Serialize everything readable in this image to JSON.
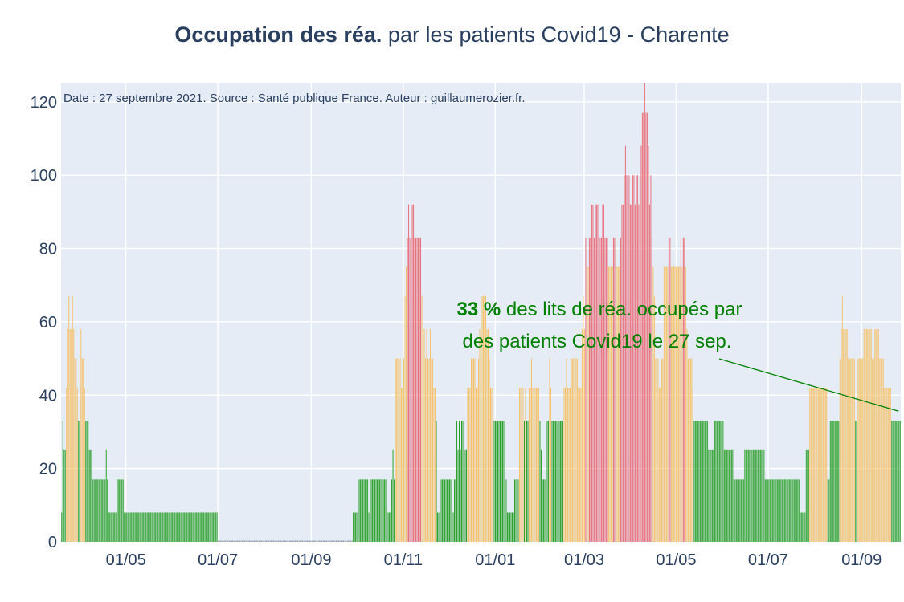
{
  "title": {
    "bold": "Occupation des réa.",
    "rest": " par les patients Covid19 - Charente"
  },
  "note": "Date : 27 septembre 2021. Source : Santé publique France. Auteur : guillaumerozier.fr.",
  "annotation": {
    "value": "33",
    "value_suffix": " %",
    "line1_rest": " des lits de réa. occupés par",
    "line2": "des patients Covid19 le 27 sep."
  },
  "colors": {
    "green": "#2ca02c",
    "orange": "#f5c26b",
    "red": "#e8707b",
    "plot_bg": "#e5ecf6",
    "grid": "#ffffff",
    "axis_text": "#2a3f5f",
    "annotation": "#008000"
  },
  "chart_data": {
    "type": "bar",
    "ylim": [
      0,
      125
    ],
    "yticks": [
      "0",
      "20",
      "40",
      "60",
      "80",
      "100",
      "120"
    ],
    "xticks": [
      "01/05",
      "01/07",
      "01/09",
      "01/11",
      "01/01",
      "01/03",
      "01/05",
      "01/07",
      "01/09"
    ],
    "grid": true,
    "x_start": "2020-03-19",
    "x_end": "2021-09-27",
    "color_thresholds": {
      "green_below": 40,
      "orange_below": 80
    },
    "series": [
      {
        "values": [
          8,
          33,
          25,
          25,
          42,
          58,
          67,
          58,
          58,
          67,
          58,
          50,
          50,
          42,
          33,
          33,
          58,
          50,
          50,
          42,
          33,
          33,
          33,
          25,
          25,
          25,
          17,
          17,
          17,
          17,
          17,
          17,
          17,
          17,
          17,
          17,
          17,
          25,
          17,
          8,
          8,
          8,
          8,
          8,
          8,
          8,
          17,
          17,
          17,
          17,
          17,
          17,
          8,
          8,
          8,
          8,
          8,
          8,
          8,
          8,
          8,
          8,
          8,
          8,
          8,
          8,
          8,
          8,
          8,
          8,
          8,
          8,
          8,
          8,
          8,
          8,
          8,
          8,
          8,
          8,
          8,
          8,
          8,
          8,
          8,
          8,
          8,
          8,
          8,
          8,
          8,
          8,
          8,
          8,
          8,
          8,
          8,
          8,
          8,
          8,
          8,
          8,
          8,
          8,
          8,
          8,
          8,
          8,
          8,
          8,
          8,
          8,
          8,
          8,
          8,
          8,
          8,
          8,
          8,
          8,
          8,
          8,
          8,
          8,
          8,
          8,
          8,
          8,
          8,
          8,
          0,
          0,
          0,
          0,
          0,
          0,
          0,
          0,
          0,
          0,
          0,
          0,
          0,
          0,
          0,
          0,
          0,
          0,
          0,
          0,
          0,
          0,
          0,
          0,
          0,
          0,
          0,
          0,
          0,
          0,
          0,
          0,
          0,
          0,
          0,
          0,
          0,
          0,
          0,
          0,
          0,
          0,
          0,
          0,
          0,
          0,
          0,
          0,
          0,
          0,
          0,
          0,
          0,
          0,
          0,
          0,
          0,
          0,
          0,
          0,
          0,
          0,
          0,
          0,
          0,
          0,
          0,
          0,
          0,
          0,
          0,
          0,
          0,
          0,
          0,
          0,
          0,
          0,
          0,
          0,
          0,
          0,
          0,
          0,
          0,
          0,
          0,
          0,
          0,
          0,
          0,
          0,
          0,
          0,
          0,
          0,
          0,
          0,
          0,
          0,
          0,
          0,
          0,
          0,
          0,
          0,
          0,
          0,
          0,
          0,
          0,
          0,
          8,
          8,
          8,
          8,
          17,
          17,
          17,
          17,
          17,
          17,
          17,
          17,
          17,
          8,
          17,
          17,
          17,
          17,
          17,
          17,
          17,
          17,
          17,
          17,
          17,
          17,
          17,
          17,
          8,
          8,
          8,
          8,
          17,
          25,
          17,
          50,
          50,
          50,
          50,
          50,
          42,
          42,
          50,
          67,
          75,
          83,
          92,
          83,
          83,
          92,
          92,
          83,
          83,
          83,
          83,
          83,
          83,
          67,
          58,
          58,
          50,
          58,
          50,
          50,
          58,
          50,
          50,
          42,
          42,
          33,
          8,
          8,
          8,
          17,
          17,
          17,
          17,
          17,
          17,
          17,
          17,
          17,
          8,
          8,
          17,
          17,
          33,
          25,
          33,
          25,
          33,
          33,
          33,
          25,
          25,
          42,
          42,
          42,
          50,
          50,
          50,
          50,
          42,
          42,
          50,
          58,
          67,
          67,
          67,
          67,
          67,
          58,
          58,
          50,
          42,
          42,
          42,
          33,
          33,
          33,
          33,
          33,
          33,
          33,
          33,
          33,
          17,
          17,
          8,
          8,
          8,
          8,
          8,
          8,
          17,
          17,
          17,
          17,
          42,
          42,
          42,
          42,
          33,
          42,
          33,
          33,
          42,
          42,
          50,
          42,
          42,
          42,
          42,
          42,
          42,
          33,
          25,
          17,
          17,
          17,
          17,
          33,
          33,
          50,
          42,
          33,
          33,
          33,
          33,
          33,
          33,
          33,
          33,
          33,
          33,
          42,
          42,
          50,
          42,
          42,
          42,
          50,
          50,
          50,
          58,
          50,
          50,
          42,
          42,
          42,
          58,
          67,
          58,
          83,
          75,
          75,
          83,
          83,
          92,
          92,
          83,
          92,
          92,
          92,
          83,
          83,
          83,
          92,
          92,
          83,
          83,
          83,
          75,
          75,
          75,
          75,
          83,
          83,
          75,
          75,
          75,
          75,
          83,
          92,
          92,
          100,
          108,
          100,
          100,
          100,
          92,
          92,
          100,
          100,
          92,
          100,
          100,
          92,
          100,
          108,
          117,
          117,
          125,
          117,
          117,
          108,
          92,
          100,
          83,
          75,
          67,
          50,
          50,
          50,
          42,
          42,
          50,
          50,
          75,
          75,
          75,
          75,
          83,
          83,
          75,
          75,
          75,
          75,
          75,
          75,
          75,
          75,
          83,
          75,
          83,
          83,
          75,
          58,
          50,
          50,
          50,
          50,
          42,
          33,
          33,
          33,
          33,
          33,
          33,
          33,
          33,
          33,
          33,
          33,
          33,
          25,
          25,
          25,
          25,
          25,
          33,
          33,
          33,
          33,
          33,
          33,
          33,
          33,
          25,
          25,
          25,
          25,
          25,
          25,
          25,
          25,
          17,
          17,
          17,
          17,
          17,
          17,
          17,
          17,
          17,
          25,
          25,
          25,
          25,
          25,
          25,
          25,
          25,
          25,
          25,
          25,
          25,
          25,
          25,
          25,
          25,
          25,
          17,
          17,
          17,
          17,
          17,
          17,
          17,
          17,
          17,
          17,
          17,
          17,
          17,
          17,
          17,
          17,
          17,
          17,
          17,
          17,
          17,
          17,
          17,
          17,
          17,
          17,
          17,
          17,
          17,
          8,
          8,
          8,
          8,
          8,
          25,
          25,
          25,
          42,
          42,
          42,
          42,
          42,
          42,
          42,
          42,
          42,
          42,
          42,
          42,
          42,
          42,
          42,
          17,
          17,
          33,
          33,
          33,
          33,
          33,
          33,
          33,
          33,
          50,
          58,
          67,
          58,
          58,
          58,
          58,
          50,
          50,
          50,
          50,
          50,
          50,
          33,
          33,
          50,
          50,
          50,
          50,
          50,
          58,
          58,
          58,
          58,
          58,
          58,
          58,
          50,
          50,
          58,
          58,
          58,
          58,
          50,
          50,
          50,
          50,
          42,
          42,
          42,
          42,
          42,
          42,
          33,
          33,
          33,
          33,
          33,
          33,
          33,
          33
        ]
      }
    ]
  }
}
